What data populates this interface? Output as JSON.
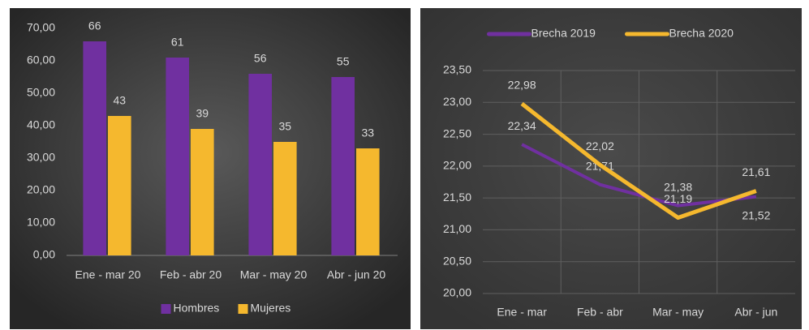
{
  "chart_data": [
    {
      "type": "bar",
      "categories": [
        "Ene - mar 20",
        "Feb - abr 20",
        "Mar - may 20",
        "Abr - jun 20"
      ],
      "series": [
        {
          "name": "Hombres",
          "color": "#7030a0",
          "values": [
            66,
            61,
            56,
            55
          ]
        },
        {
          "name": "Mujeres",
          "color": "#f5b82e",
          "values": [
            43,
            39,
            35,
            33
          ]
        }
      ],
      "ylim": [
        0,
        70
      ],
      "yticks": [
        {
          "value": 0,
          "label": "0,00"
        },
        {
          "value": 10,
          "label": "10,00"
        },
        {
          "value": 20,
          "label": "20,00"
        },
        {
          "value": 30,
          "label": "30,00"
        },
        {
          "value": 40,
          "label": "40,00"
        },
        {
          "value": 50,
          "label": "50,00"
        },
        {
          "value": 60,
          "label": "60,00"
        },
        {
          "value": 70,
          "label": "70,00"
        }
      ],
      "grid": false,
      "legend": "bottom"
    },
    {
      "type": "line",
      "categories": [
        "Ene - mar",
        "Feb - abr",
        "Mar - may",
        "Abr - jun"
      ],
      "series": [
        {
          "name": "Brecha 2019",
          "color": "#7030a0",
          "values": [
            22.34,
            21.71,
            21.38,
            21.52
          ],
          "value_labels": [
            "22,34",
            "21,71",
            "21,38",
            "21,52"
          ]
        },
        {
          "name": "Brecha 2020",
          "color": "#f5b82e",
          "values": [
            22.98,
            22.02,
            21.19,
            21.61
          ],
          "value_labels": [
            "22,98",
            "22,02",
            "21,19",
            "21,61"
          ]
        }
      ],
      "ylim": [
        20,
        23.5
      ],
      "yticks": [
        {
          "value": 20,
          "label": "20,00"
        },
        {
          "value": 20.5,
          "label": "20,50"
        },
        {
          "value": 21,
          "label": "21,00"
        },
        {
          "value": 21.5,
          "label": "21,50"
        },
        {
          "value": 22,
          "label": "22,00"
        },
        {
          "value": 22.5,
          "label": "22,50"
        },
        {
          "value": 23,
          "label": "23,00"
        },
        {
          "value": 23.5,
          "label": "23,50"
        }
      ],
      "grid": true,
      "legend": "top"
    }
  ]
}
